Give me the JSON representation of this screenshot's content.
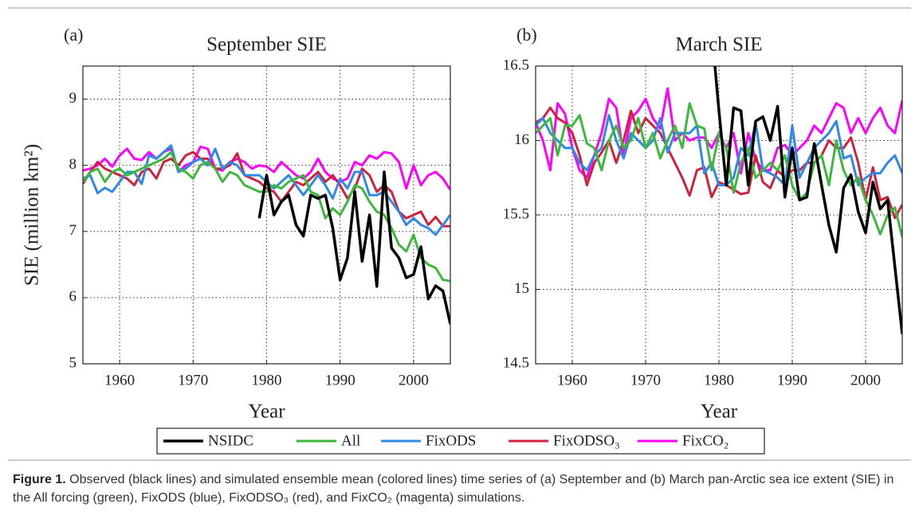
{
  "chart_data": [
    {
      "type": "line",
      "panel": "(a)",
      "title": "September SIE",
      "ylabel": "SIE (million km²)",
      "xlabel": "Year",
      "x": [
        1955,
        1956,
        1957,
        1958,
        1959,
        1960,
        1961,
        1962,
        1963,
        1964,
        1965,
        1966,
        1967,
        1968,
        1969,
        1970,
        1971,
        1972,
        1973,
        1974,
        1975,
        1976,
        1977,
        1978,
        1979,
        1980,
        1981,
        1982,
        1983,
        1984,
        1985,
        1986,
        1987,
        1988,
        1989,
        1990,
        1991,
        1992,
        1993,
        1994,
        1995,
        1996,
        1997,
        1998,
        1999,
        2000,
        2001,
        2002,
        2003,
        2004,
        2005
      ],
      "xlim": [
        1955,
        2005
      ],
      "xticks": [
        1960,
        1970,
        1980,
        1990,
        2000
      ],
      "ylim": [
        5,
        9.5
      ],
      "yticks": [
        5,
        6,
        7,
        8,
        9
      ],
      "grid": true,
      "series": [
        {
          "name": "NSIDC",
          "color": "#000000",
          "values": [
            null,
            null,
            null,
            null,
            null,
            null,
            null,
            null,
            null,
            null,
            null,
            null,
            null,
            null,
            null,
            null,
            null,
            null,
            null,
            null,
            null,
            null,
            null,
            null,
            7.2,
            7.85,
            7.25,
            7.45,
            7.55,
            7.1,
            6.93,
            7.55,
            7.5,
            7.55,
            7.05,
            6.27,
            6.6,
            7.6,
            6.55,
            7.25,
            6.17,
            7.9,
            6.75,
            6.6,
            6.3,
            6.35,
            6.77,
            5.98,
            6.18,
            6.1,
            5.6
          ]
        },
        {
          "name": "All",
          "color": "#3cb83c",
          "values": [
            7.75,
            7.9,
            7.95,
            7.75,
            7.9,
            7.95,
            7.85,
            7.9,
            7.95,
            8.0,
            8.05,
            8.1,
            8.2,
            7.95,
            7.9,
            7.8,
            8.0,
            8.05,
            7.95,
            7.75,
            7.9,
            7.85,
            7.7,
            7.65,
            7.6,
            7.6,
            7.7,
            7.65,
            7.75,
            7.8,
            7.85,
            7.6,
            7.55,
            7.2,
            7.35,
            7.25,
            7.45,
            7.7,
            7.65,
            7.45,
            7.3,
            7.25,
            7.05,
            6.8,
            6.7,
            6.95,
            6.6,
            6.5,
            6.45,
            6.27,
            6.25
          ]
        },
        {
          "name": "FixODS",
          "color": "#2e8ae6",
          "values": [
            7.8,
            7.85,
            7.58,
            7.66,
            7.6,
            7.75,
            7.9,
            7.9,
            7.72,
            8.15,
            8.1,
            8.2,
            8.3,
            7.9,
            7.95,
            8.05,
            8.1,
            8.0,
            8.25,
            7.95,
            8.05,
            8.0,
            7.85,
            7.85,
            7.85,
            7.75,
            7.65,
            7.75,
            7.85,
            7.7,
            7.55,
            7.7,
            7.85,
            7.7,
            7.5,
            7.8,
            7.65,
            7.9,
            7.9,
            7.55,
            7.55,
            7.6,
            7.45,
            7.3,
            7.1,
            7.2,
            7.1,
            7.05,
            6.95,
            7.1,
            7.25
          ]
        },
        {
          "name": "FixODSO₃",
          "color": "#d0213d",
          "values": [
            7.72,
            7.9,
            8.05,
            7.95,
            7.9,
            7.85,
            7.8,
            7.7,
            7.9,
            7.95,
            7.8,
            8.05,
            8.1,
            8.0,
            8.15,
            8.2,
            8.1,
            8.1,
            7.95,
            7.95,
            8.0,
            8.18,
            7.85,
            7.8,
            7.75,
            7.65,
            7.6,
            7.45,
            7.6,
            7.75,
            7.7,
            7.8,
            7.9,
            7.75,
            7.85,
            7.7,
            7.5,
            7.65,
            7.95,
            7.85,
            7.6,
            7.7,
            7.6,
            7.3,
            7.2,
            7.25,
            7.3,
            7.1,
            7.22,
            7.08,
            7.08
          ]
        },
        {
          "name": "FixCO₂",
          "color": "#ff00ff",
          "values": [
            7.92,
            7.95,
            8.0,
            8.1,
            7.98,
            8.15,
            8.25,
            8.1,
            8.08,
            8.2,
            8.1,
            8.2,
            8.25,
            7.9,
            8.0,
            8.05,
            8.28,
            8.25,
            7.95,
            7.92,
            8.05,
            8.1,
            8.05,
            7.95,
            8.0,
            7.98,
            7.9,
            8.05,
            7.95,
            7.85,
            7.8,
            7.9,
            8.1,
            7.9,
            7.8,
            7.75,
            7.8,
            8.05,
            8.0,
            8.15,
            8.1,
            8.2,
            8.18,
            8.05,
            7.65,
            8.0,
            7.7,
            7.85,
            7.9,
            7.8,
            7.63
          ]
        }
      ]
    },
    {
      "type": "line",
      "panel": "(b)",
      "title": "March SIE",
      "xlabel": "Year",
      "x": [
        1955,
        1956,
        1957,
        1958,
        1959,
        1960,
        1961,
        1962,
        1963,
        1964,
        1965,
        1966,
        1967,
        1968,
        1969,
        1970,
        1971,
        1972,
        1973,
        1974,
        1975,
        1976,
        1977,
        1978,
        1979,
        1980,
        1981,
        1982,
        1983,
        1984,
        1985,
        1986,
        1987,
        1988,
        1989,
        1990,
        1991,
        1992,
        1993,
        1994,
        1995,
        1996,
        1997,
        1998,
        1999,
        2000,
        2001,
        2002,
        2003,
        2004,
        2005
      ],
      "xlim": [
        1955,
        2005
      ],
      "xticks": [
        1960,
        1970,
        1980,
        1990,
        2000
      ],
      "ylim": [
        14.5,
        16.5
      ],
      "yticks": [
        14.5,
        15,
        15.5,
        16,
        16.5
      ],
      "grid": true,
      "series": [
        {
          "name": "NSIDC",
          "color": "#000000",
          "values": [
            null,
            null,
            null,
            null,
            null,
            null,
            null,
            null,
            null,
            null,
            null,
            null,
            null,
            null,
            null,
            null,
            null,
            null,
            null,
            null,
            null,
            null,
            null,
            null,
            16.75,
            16.2,
            15.7,
            16.22,
            16.2,
            15.7,
            16.13,
            16.16,
            16.0,
            16.23,
            15.62,
            15.95,
            15.6,
            15.62,
            15.98,
            15.7,
            15.43,
            15.25,
            15.68,
            15.77,
            15.52,
            15.38,
            15.72,
            15.54,
            15.6,
            15.15,
            14.7
          ]
        },
        {
          "name": "All",
          "color": "#3cb83c",
          "values": [
            16.05,
            16.1,
            16.15,
            15.9,
            16.1,
            16.1,
            16.17,
            15.98,
            15.95,
            15.8,
            16.0,
            16.1,
            15.95,
            16.0,
            16.15,
            15.95,
            16.05,
            15.88,
            16.0,
            16.1,
            15.95,
            16.25,
            16.1,
            16.08,
            15.8,
            16.05,
            15.95,
            15.65,
            15.85,
            15.95,
            15.75,
            15.8,
            15.85,
            15.8,
            15.9,
            15.7,
            15.6,
            15.65,
            15.85,
            15.9,
            15.7,
            16.0,
            15.8,
            15.7,
            15.75,
            15.6,
            15.5,
            15.37,
            15.5,
            15.55,
            15.35
          ]
        },
        {
          "name": "FixODS",
          "color": "#2e8ae6",
          "values": [
            16.1,
            16.15,
            16.05,
            16.0,
            15.95,
            15.95,
            15.85,
            15.8,
            15.9,
            15.95,
            16.17,
            16.0,
            15.88,
            16.05,
            16.0,
            15.95,
            16.0,
            16.15,
            15.92,
            16.05,
            16.05,
            16.05,
            16.1,
            15.78,
            15.85,
            15.7,
            15.7,
            15.75,
            15.95,
            15.9,
            16.12,
            15.8,
            15.78,
            15.75,
            15.7,
            16.1,
            15.75,
            15.85,
            15.95,
            16.0,
            16.05,
            16.13,
            15.88,
            15.9,
            15.7,
            15.75,
            15.78,
            15.78,
            15.85,
            15.9,
            15.78
          ]
        },
        {
          "name": "FixODSO₃",
          "color": "#d0213d",
          "values": [
            16.12,
            16.15,
            16.22,
            16.15,
            16.12,
            16.05,
            15.9,
            15.7,
            15.85,
            15.92,
            16.0,
            15.85,
            16.0,
            16.2,
            16.05,
            16.15,
            16.1,
            16.05,
            15.95,
            15.85,
            15.75,
            15.63,
            15.8,
            15.82,
            15.62,
            15.72,
            15.7,
            15.67,
            15.64,
            15.65,
            15.9,
            15.72,
            15.68,
            15.8,
            15.75,
            15.8,
            15.8,
            15.85,
            15.85,
            15.9,
            16.0,
            15.95,
            15.95,
            16.02,
            15.85,
            15.6,
            15.82,
            15.6,
            15.62,
            15.48,
            15.57
          ]
        },
        {
          "name": "FixCO₂",
          "color": "#ff00ff",
          "values": [
            16.12,
            16.0,
            15.8,
            16.25,
            16.18,
            15.95,
            15.8,
            15.75,
            15.9,
            16.05,
            16.28,
            16.22,
            15.9,
            16.15,
            16.2,
            16.28,
            16.15,
            16.08,
            16.35,
            16.0,
            16.05,
            16.0,
            16.02,
            16.02,
            15.95,
            16.05,
            15.95,
            16.05,
            15.78,
            16.05,
            15.87,
            15.8,
            15.8,
            15.95,
            15.97,
            15.9,
            15.95,
            16.0,
            16.1,
            16.05,
            16.15,
            16.25,
            16.22,
            16.05,
            16.15,
            16.05,
            16.15,
            16.22,
            16.1,
            16.05,
            16.27
          ]
        }
      ]
    }
  ],
  "caption": {
    "label": "Figure 1.",
    "text": " Observed (black lines) and simulated ensemble mean (colored lines) time series of (a) September and (b) March pan-Arctic sea ice extent (SIE) in the All forcing (green), FixODS (blue), FixODSO₃ (red), and FixCO₂ (magenta) simulations."
  }
}
